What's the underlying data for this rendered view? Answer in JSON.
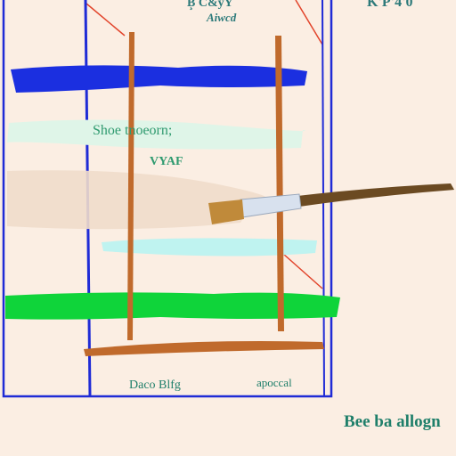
{
  "labels": {
    "top_center": "B̧ C&yY",
    "top_center_2": "Aiwcd",
    "top_right": "K'P'4'0̇̃",
    "mid_1": "Shoe tnoeorn;",
    "mid_2": "VYAF",
    "bottom_left": "Daco Blfg",
    "bottom_right": "apoccal",
    "caption": "Bee ba allogn"
  },
  "colors": {
    "background": "#fbeee3",
    "frame_blue": "#1f2bd6",
    "stroke_blue": "#1b2fe0",
    "stroke_green": "#0fd43a",
    "stroke_cyan": "#bff3f0",
    "stroke_mint": "#dff5e8",
    "stroke_tan": "#efdcca",
    "post_brown": "#c06a2c",
    "rope_red": "#e2442b",
    "brush_handle": "#6b4a22",
    "brush_ferrule": "#d8e1ee",
    "brush_bristle": "#c08a3a"
  },
  "icons": {
    "brush": "paintbrush-icon"
  }
}
